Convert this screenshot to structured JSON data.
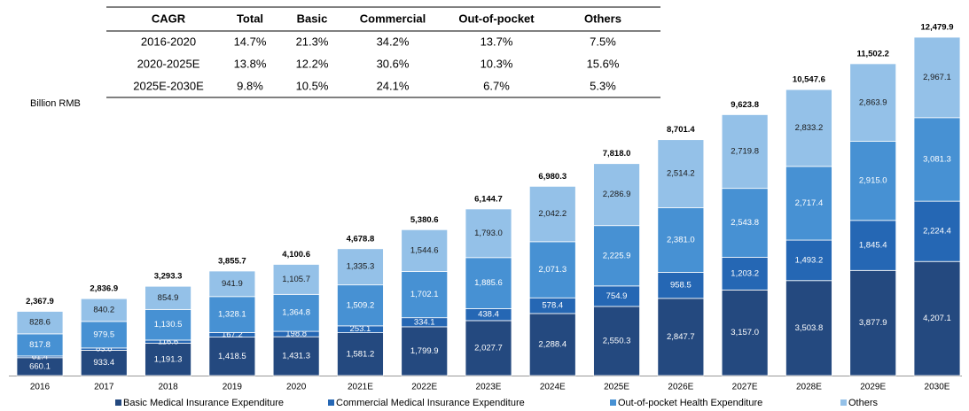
{
  "chart_data": {
    "type": "bar",
    "stacked": true,
    "unit_label": "Billion RMB",
    "table": {
      "header": [
        "CAGR",
        "Total",
        "Basic",
        "Commercial",
        "Out-of-pocket",
        "Others"
      ],
      "rows": [
        [
          "2016-2020",
          "14.7%",
          "21.3%",
          "34.2%",
          "13.7%",
          "7.5%"
        ],
        [
          "2020-2025E",
          "13.8%",
          "12.2%",
          "30.6%",
          "10.3%",
          "15.6%"
        ],
        [
          "2025E-2030E",
          "9.8%",
          "10.5%",
          "24.1%",
          "6.7%",
          "5.3%"
        ]
      ]
    },
    "categories": [
      "2016",
      "2017",
      "2018",
      "2019",
      "2020",
      "2021E",
      "2022E",
      "2023E",
      "2024E",
      "2025E",
      "2026E",
      "2027E",
      "2028E",
      "2029E",
      "2030E"
    ],
    "series": [
      {
        "name": "Basic Medical Insurance Expenditure",
        "color": "#24497f",
        "values": [
          660.1,
          933.4,
          1191.3,
          1418.5,
          1431.3,
          1581.2,
          1799.9,
          2027.7,
          2288.4,
          2550.3,
          2847.7,
          3157.0,
          3503.8,
          3877.9,
          4207.1
        ],
        "value_labels": [
          "660.1",
          "933.4",
          "1,191.3",
          "1,418.5",
          "1,431.3",
          "1,581.2",
          "1,799.9",
          "2,027.7",
          "2,288.4",
          "2,550.3",
          "2,847.7",
          "3,157.0",
          "3,503.8",
          "3,877.9",
          "4,207.1"
        ]
      },
      {
        "name": "Commercial Medical Insurance Expenditure",
        "color": "#2567b4",
        "values": [
          61.4,
          83.8,
          116.6,
          167.2,
          198.8,
          253.1,
          334.1,
          438.4,
          578.4,
          754.9,
          958.5,
          1203.2,
          1493.2,
          1845.4,
          2224.4
        ],
        "value_labels": [
          "61.4",
          "83.8",
          "116.6",
          "167.2",
          "198.8",
          "253.1",
          "334.1",
          "438.4",
          "578.4",
          "754.9",
          "958.5",
          "1,203.2",
          "1,493.2",
          "1,845.4",
          "2,224.4"
        ]
      },
      {
        "name": "Out-of-pocket Health Expenditure",
        "color": "#4791d3",
        "values": [
          817.8,
          979.5,
          1130.5,
          1328.1,
          1364.8,
          1509.2,
          1702.1,
          1885.6,
          2071.3,
          2225.9,
          2381.0,
          2543.8,
          2717.4,
          2915.0,
          3081.3
        ],
        "value_labels": [
          "817.8",
          "979.5",
          "1,130.5",
          "1,328.1",
          "1,364.8",
          "1,509.2",
          "1,702.1",
          "1,885.6",
          "2,071.3",
          "2,225.9",
          "2,381.0",
          "2,543.8",
          "2,717.4",
          "2,915.0",
          "3,081.3"
        ]
      },
      {
        "name": "Others",
        "color": "#94c1e8",
        "values": [
          828.6,
          840.2,
          854.9,
          941.9,
          1105.7,
          1335.3,
          1544.6,
          1793.0,
          2042.2,
          2286.9,
          2514.2,
          2719.8,
          2833.2,
          2863.9,
          2967.1
        ],
        "value_labels": [
          "828.6",
          "840.2",
          "854.9",
          "941.9",
          "1,105.7",
          "1,335.3",
          "1,544.6",
          "1,793.0",
          "2,042.2",
          "2,286.9",
          "2,514.2",
          "2,719.8",
          "2,833.2",
          "2,863.9",
          "2,967.1"
        ]
      }
    ],
    "totals": {
      "values": [
        2367.9,
        2836.9,
        3293.3,
        3855.7,
        4100.6,
        4678.8,
        5380.6,
        6144.7,
        6980.3,
        7818.0,
        8701.4,
        9623.8,
        10547.6,
        11502.2,
        12479.9
      ],
      "value_labels": [
        "2,367.9",
        "2,836.9",
        "3,293.3",
        "3,855.7",
        "4,100.6",
        "4,678.8",
        "5,380.6",
        "6,144.7",
        "6,980.3",
        "7,818.0",
        "8,701.4",
        "9,623.8",
        "10,547.6",
        "11,502.2",
        "12,479.9"
      ]
    }
  }
}
